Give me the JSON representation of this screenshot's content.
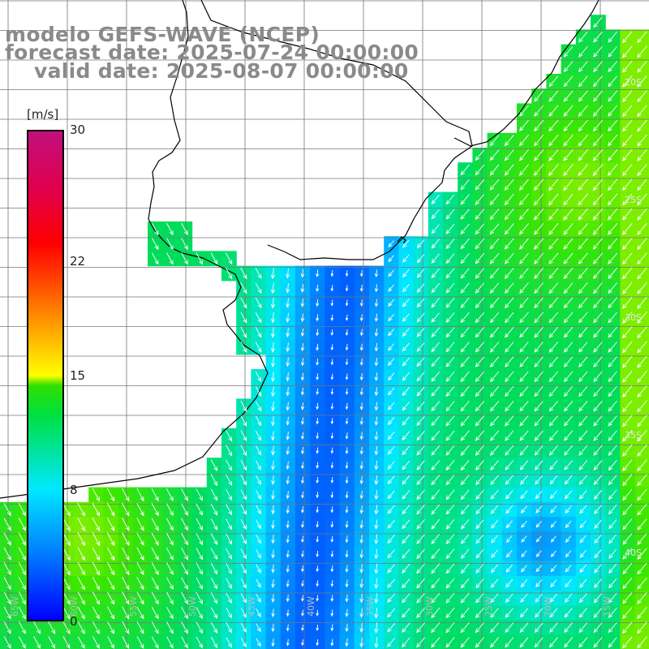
{
  "title": {
    "line1": "modelo GEFS-WAVE (NCEP)",
    "line2": "forecast date: 2025-07-24 00:00:00",
    "line3": "valid date: 2025-08-07 00:00:00"
  },
  "colorbar": {
    "unit": "[m/s]",
    "min": 0,
    "max": 30,
    "ticks": [
      "30",
      "22",
      "15",
      "8",
      "0"
    ],
    "tick_values": [
      30,
      22,
      15,
      8,
      0
    ]
  },
  "map": {
    "parameter": "wind speed",
    "lon_labels": [
      "65W",
      "60W",
      "55W",
      "50W",
      "45W",
      "40W",
      "35W",
      "30W",
      "25W",
      "20W",
      "15W"
    ],
    "lat_labels": [
      "20S",
      "25S",
      "30S",
      "35S",
      "40S"
    ],
    "colors": {
      "land": "#ffffff",
      "coast": "#000000",
      "grid": "#777777",
      "arrow": "#ffffff"
    }
  }
}
